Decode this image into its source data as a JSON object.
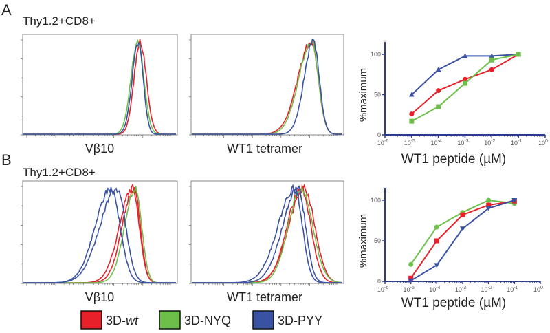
{
  "panels": {
    "A": {
      "letter": "A",
      "gate": "Thy1.2+CD8+"
    },
    "B": {
      "letter": "B",
      "gate": "Thy1.2+CD8+"
    }
  },
  "colors": {
    "wt": "#e8202a",
    "nyq": "#6cc04a",
    "pyy": "#3a52a4",
    "axis": "#2b3a8f"
  },
  "legend": [
    {
      "label_pre": "3D-",
      "label_em": "wt",
      "color": "#e8202a"
    },
    {
      "label_pre": "3D-NYQ",
      "label_em": "",
      "color": "#6cc04a"
    },
    {
      "label_pre": "3D-PYY",
      "label_em": "",
      "color": "#3a52a4"
    }
  ],
  "chart_data": [
    {
      "type": "histogram",
      "panel": "A",
      "xlabel": "Vβ10",
      "xrange_decades": [
        0,
        5
      ],
      "series": [
        {
          "name": "3D-wt",
          "color": "#e8202a",
          "peak": 3.8,
          "sl": 0.2,
          "sr": 0.2
        },
        {
          "name": "3D-NYQ",
          "color": "#6cc04a",
          "peak": 3.72,
          "sl": 0.22,
          "sr": 0.2
        },
        {
          "name": "3D-PYY",
          "color": "#3a52a4",
          "peak": 3.74,
          "sl": 0.2,
          "sr": 0.16
        }
      ]
    },
    {
      "type": "histogram",
      "panel": "A",
      "xlabel": "WT1 tetramer",
      "xrange_decades": [
        0,
        5
      ],
      "series": [
        {
          "name": "3D-wt",
          "color": "#e8202a",
          "peak": 3.95,
          "sl": 0.45,
          "sr": 0.22
        },
        {
          "name": "3D-NYQ",
          "color": "#6cc04a",
          "peak": 3.95,
          "sl": 0.42,
          "sr": 0.22
        },
        {
          "name": "3D-PYY",
          "color": "#3a52a4",
          "peak": 4.0,
          "sl": 0.3,
          "sr": 0.2
        }
      ]
    },
    {
      "type": "histogram",
      "panel": "B",
      "xlabel": "Vβ10",
      "xrange_decades": [
        0,
        5
      ],
      "series": [
        {
          "name": "3D-wt",
          "color": "#e8202a",
          "peak": 3.55,
          "sl": 0.42,
          "sr": 0.22
        },
        {
          "name": "3D-wt",
          "color": "#e8202a",
          "peak": 3.6,
          "sl": 0.38,
          "sr": 0.2
        },
        {
          "name": "3D-NYQ",
          "color": "#6cc04a",
          "peak": 3.65,
          "sl": 0.35,
          "sr": 0.2
        },
        {
          "name": "3D-PYY",
          "color": "#3a52a4",
          "peak": 2.85,
          "sl": 0.5,
          "sr": 0.3
        },
        {
          "name": "3D-PYY",
          "color": "#3a52a4",
          "peak": 3.05,
          "sl": 0.55,
          "sr": 0.28
        }
      ]
    },
    {
      "type": "histogram",
      "panel": "B",
      "xlabel": "WT1 tetramer",
      "xrange_decades": [
        0,
        5
      ],
      "series": [
        {
          "name": "3D-wt",
          "color": "#e8202a",
          "peak": 3.7,
          "sl": 0.5,
          "sr": 0.35
        },
        {
          "name": "3D-wt",
          "color": "#e8202a",
          "peak": 3.6,
          "sl": 0.45,
          "sr": 0.32
        },
        {
          "name": "3D-NYQ",
          "color": "#6cc04a",
          "peak": 3.6,
          "sl": 0.42,
          "sr": 0.38
        },
        {
          "name": "3D-PYY",
          "color": "#3a52a4",
          "peak": 3.4,
          "sl": 0.55,
          "sr": 0.25
        },
        {
          "name": "3D-PYY",
          "color": "#3a52a4",
          "peak": 3.5,
          "sl": 0.5,
          "sr": 0.25
        }
      ]
    },
    {
      "type": "line",
      "panel": "A",
      "xlabel": "WT1 peptide (µM)",
      "ylabel": "%maximum",
      "xscale": "log",
      "xlim": [
        -6,
        0
      ],
      "ylim": [
        0,
        100
      ],
      "xticks": [
        "-6",
        "-5",
        "-4",
        "-3",
        "-2",
        "-1",
        "0"
      ],
      "yticks": [
        "0",
        "50",
        "100"
      ],
      "x_exponents": [
        -5,
        -4,
        -3,
        -2,
        -1
      ],
      "series": [
        {
          "name": "3D-PYY",
          "color": "#3a52a4",
          "marker": "triangle",
          "values": [
            50,
            81,
            98,
            98,
            100
          ]
        },
        {
          "name": "3D-wt",
          "color": "#e8202a",
          "marker": "circle",
          "values": [
            26,
            55,
            69,
            81,
            100
          ]
        },
        {
          "name": "3D-NYQ",
          "color": "#6cc04a",
          "marker": "square",
          "values": [
            17,
            35,
            64,
            93,
            100
          ]
        }
      ]
    },
    {
      "type": "line",
      "panel": "B",
      "xlabel": "WT1 peptide (µM)",
      "ylabel": "%maximum",
      "xscale": "log",
      "xlim": [
        -6,
        0
      ],
      "ylim": [
        0,
        100
      ],
      "xticks": [
        "-6",
        "-5",
        "-4",
        "-3",
        "-2",
        "-1",
        "0"
      ],
      "yticks": [
        "0",
        "50",
        "100"
      ],
      "x_exponents": [
        -5,
        -4,
        -3,
        -2,
        -1
      ],
      "series": [
        {
          "name": "3D-NYQ",
          "color": "#6cc04a",
          "marker": "circle",
          "values": [
            21,
            67,
            85,
            100,
            96
          ]
        },
        {
          "name": "3D-wt",
          "color": "#e8202a",
          "marker": "square",
          "values": [
            4,
            50,
            82,
            94,
            99
          ]
        },
        {
          "name": "3D-PYY",
          "color": "#3a52a4",
          "marker": "triangle-down",
          "values": [
            1,
            20,
            65,
            90,
            100
          ]
        }
      ]
    }
  ]
}
